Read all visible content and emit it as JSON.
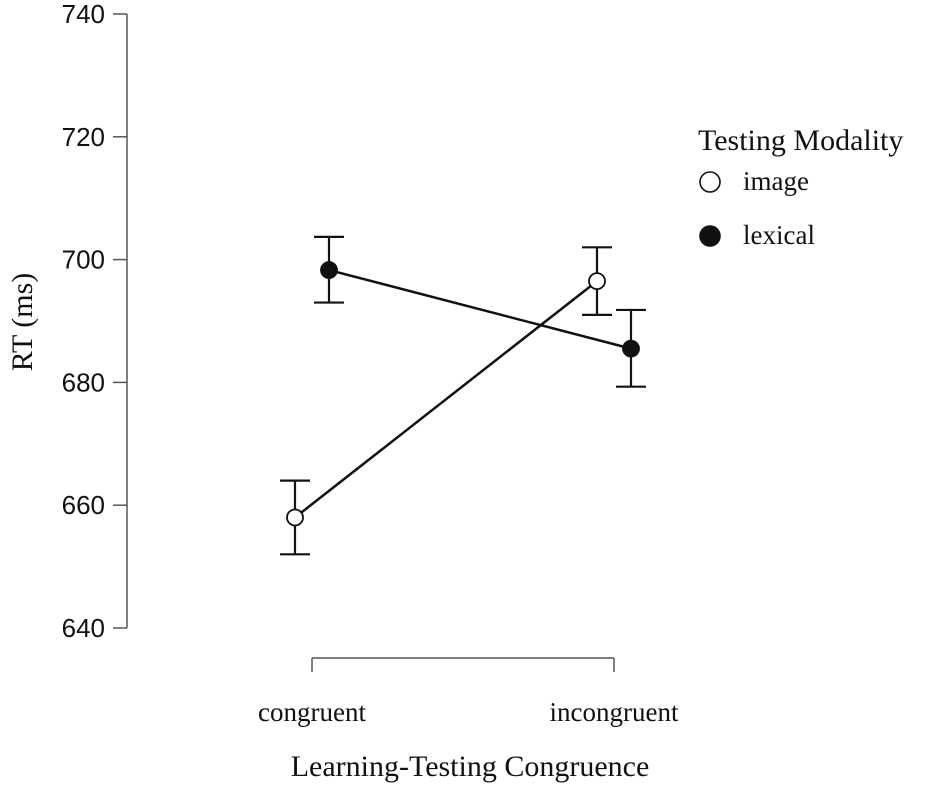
{
  "chart_data": {
    "type": "line",
    "xlabel": "Learning-Testing Congruence",
    "ylabel": "RT (ms)",
    "ylim": [
      640,
      740
    ],
    "yticks": [
      640,
      660,
      680,
      700,
      720,
      740
    ],
    "categories": [
      "congruent",
      "incongruent"
    ],
    "legend": {
      "title": "Testing Modality",
      "placement": "right"
    },
    "grid": false,
    "series": [
      {
        "name": "image",
        "marker": "open-circle",
        "values": [
          658,
          696.5
        ],
        "error_low": [
          652,
          691
        ],
        "error_high": [
          664,
          702
        ]
      },
      {
        "name": "lexical",
        "marker": "filled-circle",
        "values": [
          698.3,
          685.5
        ],
        "error_low": [
          693,
          679.3
        ],
        "error_high": [
          703.7,
          691.8
        ]
      }
    ]
  }
}
